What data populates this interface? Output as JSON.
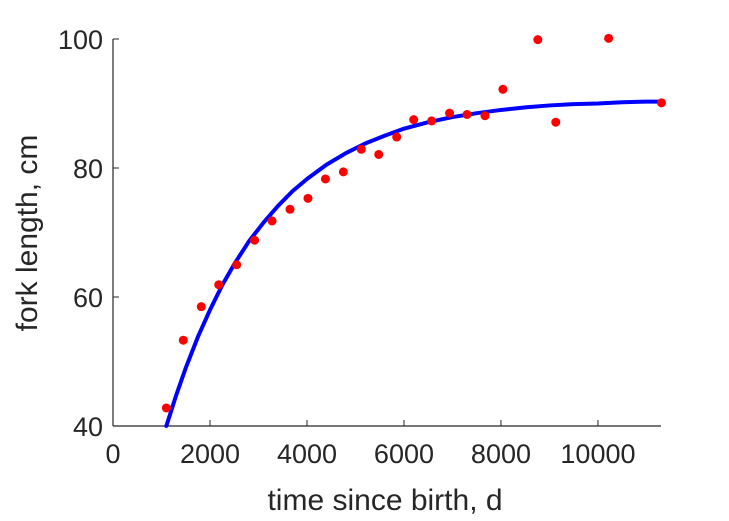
{
  "chart_data": {
    "type": "scatter",
    "title": "",
    "xlabel": "time since birth, d",
    "ylabel": "fork length, cm",
    "xlim": [
      0,
      11300
    ],
    "ylim": [
      40,
      100
    ],
    "xticks": [
      0,
      2000,
      4000,
      6000,
      8000,
      10000
    ],
    "yticks": [
      40,
      60,
      80,
      100
    ],
    "grid": false,
    "legend": "none",
    "series": [
      {
        "kind": "scatter",
        "color": "#ff0000",
        "x": [
          1100,
          1450,
          1820,
          2180,
          2550,
          2920,
          3280,
          3650,
          4020,
          4380,
          4750,
          5120,
          5480,
          5850,
          6200,
          6570,
          6940,
          7300,
          7670,
          8040,
          8760,
          9130,
          10220,
          11310
        ],
        "y": [
          42.8,
          53.3,
          58.5,
          61.9,
          65.0,
          68.8,
          71.8,
          73.6,
          75.3,
          78.3,
          79.4,
          82.9,
          82.1,
          84.8,
          87.5,
          87.3,
          88.5,
          88.3,
          88.1,
          92.2,
          99.9,
          87.1,
          100.1,
          90.1
        ]
      },
      {
        "kind": "line",
        "color": "#0000ff",
        "x": [
          1100,
          1300,
          1500,
          1750,
          2000,
          2250,
          2500,
          2800,
          3100,
          3400,
          3700,
          4000,
          4400,
          4800,
          5200,
          5600,
          6000,
          6500,
          7000,
          7500,
          8000,
          8500,
          9000,
          9500,
          10000,
          10500,
          11000,
          11300
        ],
        "y": [
          39.9,
          44.7,
          49.0,
          53.8,
          58.0,
          61.8,
          65.1,
          68.6,
          71.5,
          74.1,
          76.4,
          78.3,
          80.5,
          82.3,
          83.8,
          85.0,
          86.1,
          87.1,
          87.9,
          88.5,
          89.0,
          89.4,
          89.7,
          89.9,
          90.0,
          90.2,
          90.3,
          90.3
        ]
      }
    ]
  }
}
